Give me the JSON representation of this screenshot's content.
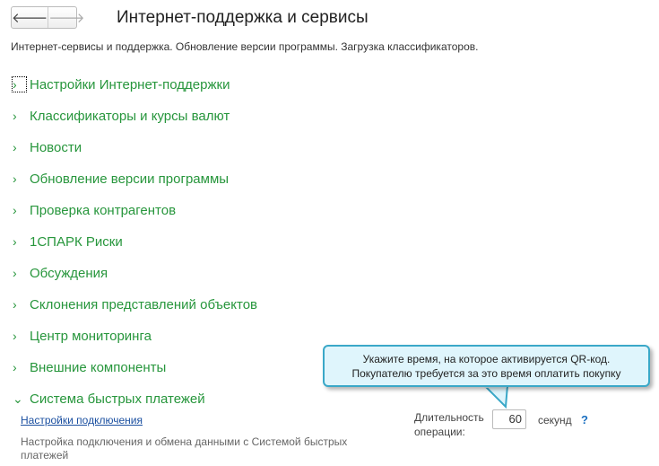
{
  "header": {
    "back_icon": "arrow-left-icon",
    "forward_icon": "arrow-right-icon",
    "title": "Интернет-поддержка и сервисы"
  },
  "description": "Интернет-сервисы и поддержка. Обновление версии программы. Загрузка классификаторов.",
  "sections": [
    {
      "label": "Настройки Интернет-поддержки",
      "expanded": false
    },
    {
      "label": "Классификаторы и курсы валют",
      "expanded": false
    },
    {
      "label": "Новости",
      "expanded": false
    },
    {
      "label": "Обновление версии программы",
      "expanded": false
    },
    {
      "label": "Проверка контрагентов",
      "expanded": false
    },
    {
      "label": "1СПАРК Риски",
      "expanded": false
    },
    {
      "label": "Обсуждения",
      "expanded": false
    },
    {
      "label": "Склонения представлений объектов",
      "expanded": false
    },
    {
      "label": "Центр мониторинга",
      "expanded": false
    },
    {
      "label": "Внешние компоненты",
      "expanded": false
    },
    {
      "label": "Система быстрых платежей",
      "expanded": true
    }
  ],
  "sbp": {
    "link": "Настройки подключения",
    "description": "Настройка подключения и обмена данными с Системой быстрых платежей",
    "duration_label": "Длительность операции:",
    "duration_value": "60",
    "unit": "секунд",
    "help": "?"
  },
  "tooltip": {
    "line1": "Укажите время, на которое активируется QR-код.",
    "line2": "Покупателю требуется за это время оплатить покупку"
  },
  "colors": {
    "accent": "#27963c",
    "link": "#1a4fa0",
    "tooltip_bg": "#dff5fc"
  }
}
